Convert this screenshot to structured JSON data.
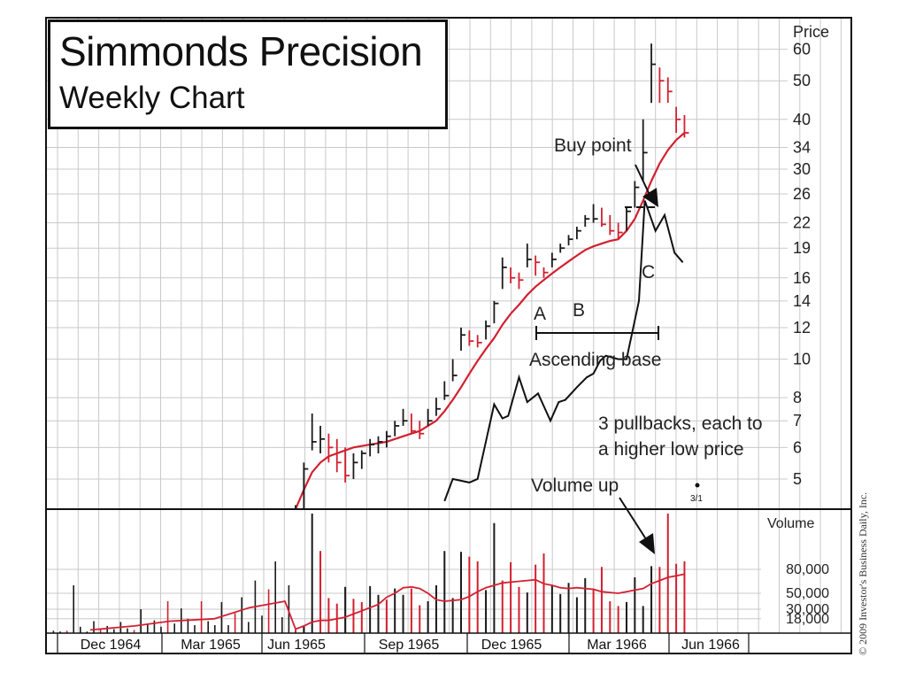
{
  "chart_data": {
    "type": "bar",
    "title": "Simmonds Precision",
    "subtitle": "Weekly Chart",
    "price_axis_label": "Price",
    "volume_axis_label": "Volume",
    "price_scale": "log",
    "price_ticks": [
      60,
      50,
      40,
      34,
      30,
      26,
      22,
      19,
      16,
      14,
      12,
      10,
      8,
      7,
      6,
      5
    ],
    "price_ylim": [
      4.2,
      72
    ],
    "volume_ticks": [
      80000,
      50000,
      30000,
      18000
    ],
    "volume_tick_labels": [
      "80,000",
      "50,000",
      "30,000",
      "18,000"
    ],
    "volume_ylim": [
      0,
      150000
    ],
    "x_labels": [
      "Dec 1964",
      "Mar 1965",
      "Jun 1965",
      "Sep 1965",
      "Dec 1965",
      "Mar 1966",
      "Jun 1966"
    ],
    "grid": true,
    "weeks": {
      "high": [
        4.3,
        5.5,
        7.3,
        6.8,
        6.5,
        6.3,
        6,
        5.8,
        5.9,
        6.3,
        6.4,
        6.6,
        7,
        7.5,
        7.3,
        7,
        7.5,
        8,
        8.8,
        10,
        12,
        11.8,
        11.5,
        12.5,
        14,
        18,
        17,
        16.5,
        19.5,
        18.2,
        17,
        18.5,
        19.5,
        20.5,
        21.5,
        23,
        24.5,
        24,
        23,
        22,
        24,
        28,
        40,
        62,
        54,
        51,
        43,
        41
      ],
      "low": [
        3.9,
        4.2,
        5.9,
        5.8,
        5.5,
        5.2,
        4.9,
        5,
        5.3,
        5.7,
        5.8,
        6,
        6.4,
        6.8,
        6.5,
        6.3,
        6.8,
        7.2,
        7.9,
        8.8,
        10.5,
        10.8,
        10.7,
        11.2,
        12.3,
        15,
        15.5,
        15,
        17,
        16.2,
        16,
        17,
        18.5,
        19.3,
        20,
        21.5,
        22,
        21.5,
        20.5,
        20,
        21,
        24,
        28,
        44,
        44,
        44,
        37,
        36
      ],
      "close": [
        4.2,
        5.3,
        6.2,
        6.3,
        6,
        5.5,
        5.1,
        5.5,
        5.8,
        6.1,
        6.2,
        6.4,
        6.8,
        7,
        6.6,
        6.5,
        7,
        7.5,
        8.1,
        9.1,
        11.5,
        11.1,
        11,
        12.1,
        13.8,
        17,
        16,
        15.8,
        17.8,
        17.5,
        16.5,
        17.8,
        19,
        20,
        21,
        22.5,
        22.5,
        21.8,
        21,
        20.8,
        23.5,
        27,
        33,
        55,
        50,
        47,
        40,
        37
      ]
    },
    "moving_average": [
      4.2,
      4.7,
      5.2,
      5.5,
      5.7,
      5.8,
      5.9,
      6,
      6.05,
      6.1,
      6.15,
      6.2,
      6.3,
      6.4,
      6.5,
      6.6,
      6.8,
      7,
      7.4,
      7.9,
      8.5,
      9.2,
      9.9,
      10.6,
      11.3,
      12.2,
      13,
      13.7,
      14.5,
      15.2,
      15.8,
      16.4,
      17,
      17.6,
      18.2,
      18.8,
      19.2,
      19.5,
      19.8,
      20,
      21,
      22.5,
      25,
      28,
      31,
      33.5,
      35.5,
      37
    ],
    "relative_strength": {
      "x_weeks": [
        18,
        19,
        21,
        22,
        24,
        25,
        25.7,
        27,
        28,
        29.3,
        30.8,
        31.8,
        32.6,
        34,
        35.2,
        36,
        36.8,
        37.5,
        39,
        40,
        41.5,
        42.2,
        43.5,
        44.6,
        45.8,
        46.8
      ],
      "price_level": [
        4.4,
        5.0,
        4.9,
        5.0,
        7.7,
        7.1,
        7.2,
        9.0,
        7.8,
        8.2,
        7.0,
        7.8,
        7.9,
        8.5,
        9.0,
        9.2,
        9.9,
        10.2,
        10.0,
        10.0,
        14,
        25,
        21,
        23,
        18.5,
        17.5
      ]
    },
    "volume": [
      4000,
      9000,
      150000,
      103000,
      44000,
      37000,
      58000,
      43000,
      39000,
      59000,
      48000,
      42000,
      56000,
      48000,
      56000,
      35000,
      40000,
      60000,
      103000,
      44000,
      102000,
      96000,
      90000,
      54000,
      138000,
      66000,
      89000,
      58000,
      51000,
      86000,
      100000,
      60000,
      49000,
      63000,
      45000,
      69000,
      55000,
      83000,
      40000,
      34000,
      39000,
      70000,
      34000,
      84000,
      83000,
      150000,
      87000,
      90000
    ],
    "volume_up_weeks": [
      false,
      true,
      true,
      false,
      false,
      false,
      true,
      false,
      false,
      true,
      true,
      false,
      true,
      true,
      false,
      false,
      true,
      true,
      true,
      true,
      true,
      false,
      false,
      true,
      true,
      false,
      false,
      false,
      true,
      false,
      false,
      true,
      true,
      true,
      true,
      true,
      false,
      false,
      false,
      false,
      true,
      true,
      true,
      true,
      false,
      false,
      false,
      false
    ],
    "volume_average": [
      5000,
      9000,
      14000,
      16000,
      16000,
      18000,
      20000,
      24000,
      28000,
      32000,
      36000,
      45000,
      50000,
      57000,
      58000,
      56000,
      50000,
      42000,
      40000,
      41000,
      42000,
      46000,
      52000,
      57000,
      60000,
      63000,
      64000,
      65000,
      66000,
      67000,
      62000,
      60000,
      57000,
      56000,
      57000,
      56000,
      55000,
      52000,
      51000,
      50000,
      52000,
      54000,
      56000,
      62000,
      66000,
      70000,
      72000,
      74000
    ],
    "annotations": [
      "Buy point",
      "A",
      "B",
      "C",
      "Ascending base",
      "3 pullbacks, each to",
      "a higher low price",
      "Volume up",
      "3/1"
    ]
  },
  "footer": {
    "copyright": "© 2009 Investor's Business Daily, Inc."
  },
  "colors": {
    "price_up": "#1a1a1a",
    "price_down": "#d22030",
    "moving_average": "#d22030",
    "grid": "#c9c9c9",
    "frame": "#111111"
  }
}
